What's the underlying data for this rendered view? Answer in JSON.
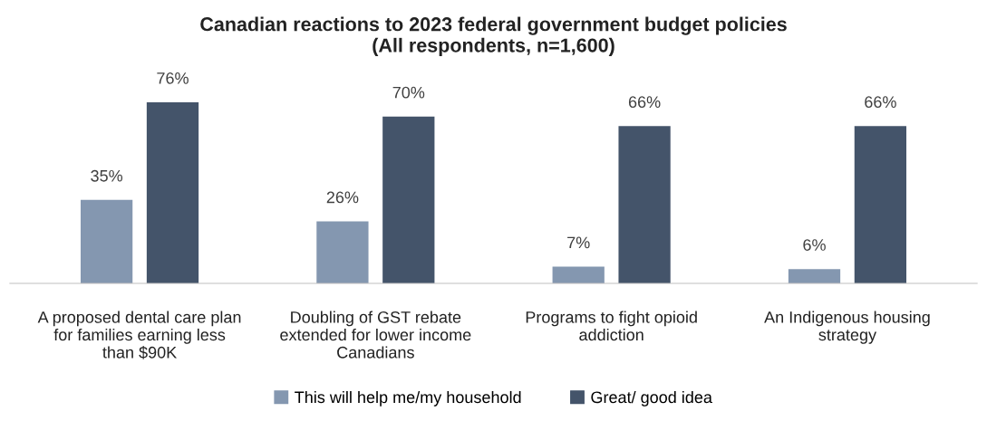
{
  "chart_data": {
    "type": "bar",
    "title": "Canadian reactions to 2023 federal government budget policies\n(All respondents, n=1,600)",
    "categories": [
      "A proposed dental care plan for families earning less than $90K",
      "Doubling of GST rebate extended for lower income Canadians",
      "Programs to fight opioid addiction",
      "An Indigenous housing strategy"
    ],
    "series": [
      {
        "name": "This will help me/my household",
        "color": "#8497b0",
        "values": [
          35,
          26,
          7,
          6
        ],
        "value_labels": [
          "35%",
          "26%",
          "7%",
          "6%"
        ]
      },
      {
        "name": "Great/ good idea",
        "color": "#44546a",
        "values": [
          76,
          70,
          66,
          66
        ],
        "value_labels": [
          "76%",
          "70%",
          "66%",
          "66%"
        ]
      }
    ],
    "legend": "bottom",
    "grid": false
  }
}
